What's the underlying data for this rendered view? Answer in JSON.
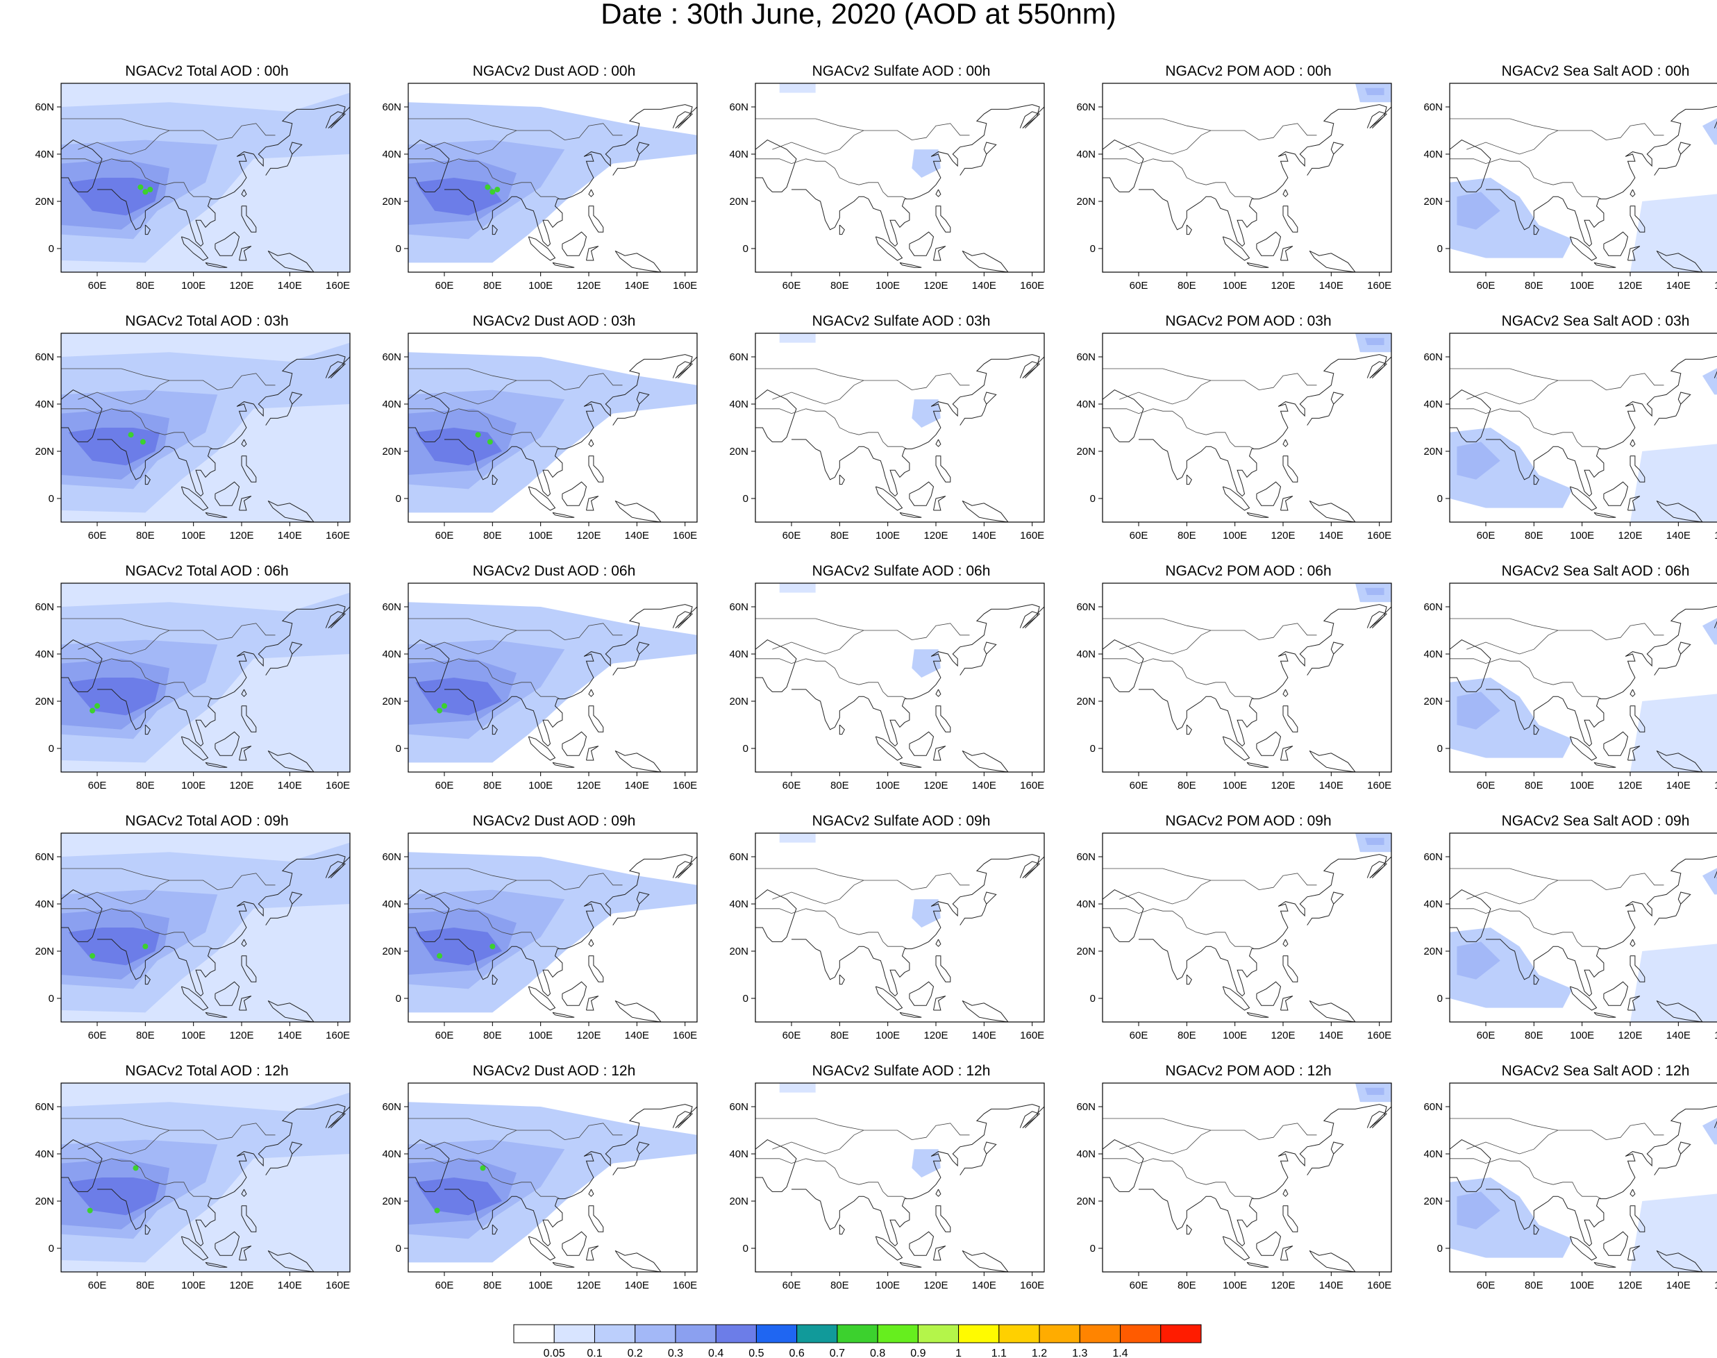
{
  "title": "Date : 30th June, 2020 (AOD at 550nm)",
  "lon_ticks": [
    "60E",
    "80E",
    "100E",
    "120E",
    "140E",
    "160E"
  ],
  "lat_ticks": [
    "60N",
    "40N",
    "20N",
    "0"
  ],
  "panel_titles": [
    [
      "NGACv2 Total AOD : 00h",
      "NGACv2 Dust AOD : 00h",
      "NGACv2 Sulfate AOD : 00h",
      "NGACv2 POM AOD : 00h",
      "NGACv2 Sea Salt AOD : 00h"
    ],
    [
      "NGACv2 Total AOD : 03h",
      "NGACv2 Dust AOD : 03h",
      "NGACv2 Sulfate AOD : 03h",
      "NGACv2 POM AOD : 03h",
      "NGACv2 Sea Salt AOD : 03h"
    ],
    [
      "NGACv2 Total AOD : 06h",
      "NGACv2 Dust AOD : 06h",
      "NGACv2 Sulfate AOD : 06h",
      "NGACv2 POM AOD : 06h",
      "NGACv2 Sea Salt AOD : 06h"
    ],
    [
      "NGACv2 Total AOD : 09h",
      "NGACv2 Dust AOD : 09h",
      "NGACv2 Sulfate AOD : 09h",
      "NGACv2 POM AOD : 09h",
      "NGACv2 Sea Salt  AOD : 09h"
    ],
    [
      "NGACv2 Total AOD  : 12h",
      "NGACv2 Dust AOD : 12h",
      "NGACv2 Sulfate AOD : 12h",
      "NGACv2 POM  AOD : 12h",
      "NGACv2 Sea Salt  AOD : 12h"
    ]
  ],
  "colorbar": {
    "colors": [
      "#ffffff",
      "#d8e4ff",
      "#bccffc",
      "#a3b8f7",
      "#8ba0f0",
      "#6c7de8",
      "#1f66f2",
      "#119a9a",
      "#3cd12e",
      "#66ee1e",
      "#b4f54a",
      "#fffb00",
      "#ffd000",
      "#ffac00",
      "#ff8400",
      "#ff5b00",
      "#ff1c00"
    ],
    "labels": [
      "0.05",
      "0.1",
      "0.2",
      "0.3",
      "0.4",
      "0.5",
      "0.6",
      "0.7",
      "0.8",
      "0.9",
      "1",
      "1.1",
      "1.2",
      "1.3",
      "1.4"
    ]
  },
  "map_colors": {
    "light": "#d8e4ff",
    "mid": "#bccffc",
    "medium": "#a3b8f7",
    "strong": "#8ba0f0",
    "heavy": "#6c7de8",
    "peak": "#3cd12e"
  }
}
